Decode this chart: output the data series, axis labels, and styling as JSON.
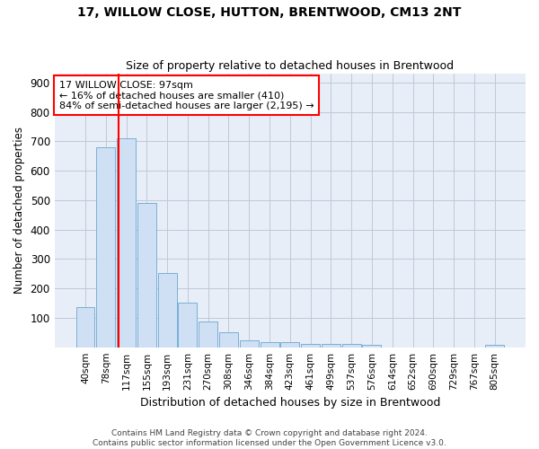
{
  "title": "17, WILLOW CLOSE, HUTTON, BRENTWOOD, CM13 2NT",
  "subtitle": "Size of property relative to detached houses in Brentwood",
  "xlabel": "Distribution of detached houses by size in Brentwood",
  "ylabel": "Number of detached properties",
  "categories": [
    "40sqm",
    "78sqm",
    "117sqm",
    "155sqm",
    "193sqm",
    "231sqm",
    "270sqm",
    "308sqm",
    "346sqm",
    "384sqm",
    "423sqm",
    "461sqm",
    "499sqm",
    "537sqm",
    "576sqm",
    "614sqm",
    "652sqm",
    "690sqm",
    "729sqm",
    "767sqm",
    "805sqm"
  ],
  "values": [
    135,
    680,
    710,
    490,
    252,
    152,
    88,
    50,
    22,
    18,
    18,
    11,
    11,
    11,
    7,
    0,
    0,
    0,
    0,
    0,
    9
  ],
  "bar_color": "#cfe0f4",
  "bar_edge_color": "#7bafd4",
  "ylim": [
    0,
    930
  ],
  "yticks": [
    100,
    200,
    300,
    400,
    500,
    600,
    700,
    800,
    900
  ],
  "property_label": "17 WILLOW CLOSE: 97sqm",
  "annotation_line1": "← 16% of detached houses are smaller (410)",
  "annotation_line2": "84% of semi-detached houses are larger (2,195) →",
  "vline_x": 1.63,
  "footer1": "Contains HM Land Registry data © Crown copyright and database right 2024.",
  "footer2": "Contains public sector information licensed under the Open Government Licence v3.0.",
  "background_color": "#e8eef8",
  "grid_color": "#c0c8d8"
}
